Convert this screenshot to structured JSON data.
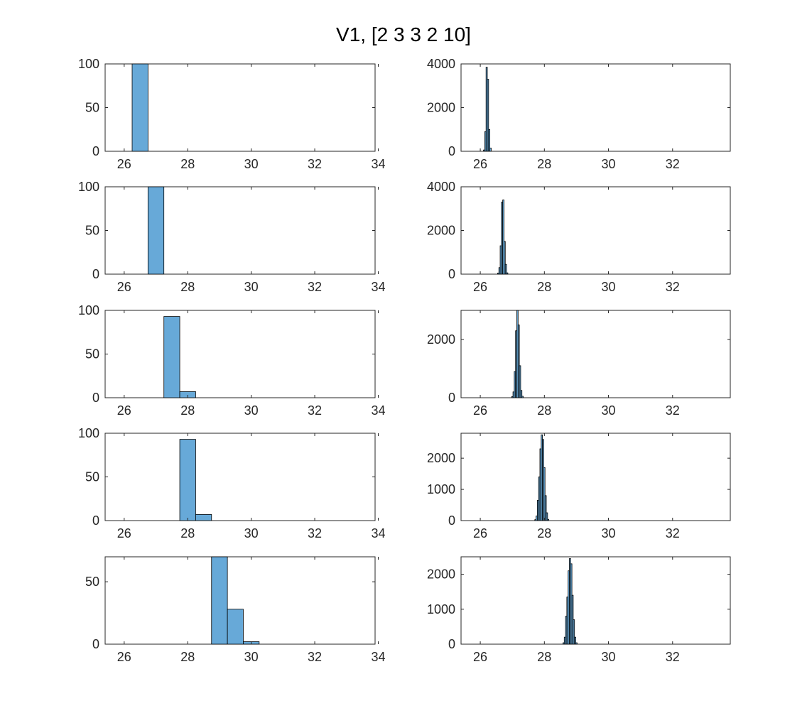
{
  "chart_data": {
    "type": "bar",
    "title": "V1, [2 3 3 2 10]",
    "bar_color": "#67A9D8",
    "edge_color": "#000000",
    "grid": false,
    "panels": [
      {
        "name": "row1-left",
        "xlim": [
          25.4,
          33.9
        ],
        "ylim": [
          0,
          100
        ],
        "xticks": [
          "26",
          "28",
          "30",
          "32",
          "34"
        ],
        "yticks": [
          "0",
          "50",
          "100"
        ],
        "bins": [
          [
            26.25,
            26.75,
            100
          ]
        ]
      },
      {
        "name": "row1-right",
        "xlim": [
          25.4,
          33.8
        ],
        "ylim": [
          0,
          4000
        ],
        "xticks": [
          "26",
          "28",
          "30",
          "32"
        ],
        "yticks": [
          "0",
          "2000",
          "4000"
        ],
        "bins": [
          [
            26.1,
            26.14,
            60
          ],
          [
            26.14,
            26.18,
            900
          ],
          [
            26.18,
            26.22,
            3850
          ],
          [
            26.22,
            26.26,
            3300
          ],
          [
            26.26,
            26.3,
            1000
          ],
          [
            26.3,
            26.34,
            150
          ]
        ]
      },
      {
        "name": "row2-left",
        "xlim": [
          25.4,
          33.9
        ],
        "ylim": [
          0,
          100
        ],
        "xticks": [
          "26",
          "28",
          "30",
          "32",
          "34"
        ],
        "yticks": [
          "0",
          "50",
          "100"
        ],
        "bins": [
          [
            26.75,
            27.25,
            100
          ]
        ]
      },
      {
        "name": "row2-right",
        "xlim": [
          25.4,
          33.8
        ],
        "ylim": [
          0,
          4000
        ],
        "xticks": [
          "26",
          "28",
          "30",
          "32"
        ],
        "yticks": [
          "0",
          "2000",
          "4000"
        ],
        "bins": [
          [
            26.54,
            26.58,
            50
          ],
          [
            26.58,
            26.62,
            300
          ],
          [
            26.62,
            26.66,
            1300
          ],
          [
            26.66,
            26.7,
            3300
          ],
          [
            26.7,
            26.74,
            3400
          ],
          [
            26.74,
            26.78,
            1500
          ],
          [
            26.78,
            26.82,
            450
          ],
          [
            26.82,
            26.86,
            60
          ]
        ]
      },
      {
        "name": "row3-left",
        "xlim": [
          25.4,
          33.9
        ],
        "ylim": [
          0,
          100
        ],
        "xticks": [
          "26",
          "28",
          "30",
          "32",
          "34"
        ],
        "yticks": [
          "0",
          "50",
          "100"
        ],
        "bins": [
          [
            27.25,
            27.75,
            93
          ],
          [
            27.75,
            28.25,
            7
          ]
        ]
      },
      {
        "name": "row3-right",
        "xlim": [
          25.4,
          33.8
        ],
        "ylim": [
          0,
          3000
        ],
        "xticks": [
          "26",
          "28",
          "30",
          "32"
        ],
        "yticks": [
          "0",
          "2000"
        ],
        "bins": [
          [
            26.98,
            27.02,
            40
          ],
          [
            27.02,
            27.06,
            200
          ],
          [
            27.06,
            27.1,
            900
          ],
          [
            27.1,
            27.14,
            2300
          ],
          [
            27.14,
            27.18,
            3000
          ],
          [
            27.18,
            27.22,
            2500
          ],
          [
            27.22,
            27.26,
            1100
          ],
          [
            27.26,
            27.3,
            250
          ],
          [
            27.3,
            27.34,
            50
          ]
        ]
      },
      {
        "name": "row4-left",
        "xlim": [
          25.4,
          33.9
        ],
        "ylim": [
          0,
          100
        ],
        "xticks": [
          "26",
          "28",
          "30",
          "32",
          "34"
        ],
        "yticks": [
          "0",
          "50",
          "100"
        ],
        "bins": [
          [
            27.75,
            28.25,
            93
          ],
          [
            28.25,
            28.75,
            7
          ]
        ]
      },
      {
        "name": "row4-right",
        "xlim": [
          25.4,
          33.8
        ],
        "ylim": [
          0,
          2800
        ],
        "xticks": [
          "26",
          "28",
          "30",
          "32"
        ],
        "yticks": [
          "0",
          "1000",
          "2000"
        ],
        "bins": [
          [
            27.7,
            27.74,
            30
          ],
          [
            27.74,
            27.78,
            150
          ],
          [
            27.78,
            27.82,
            650
          ],
          [
            27.82,
            27.86,
            1400
          ],
          [
            27.86,
            27.9,
            2300
          ],
          [
            27.9,
            27.94,
            2750
          ],
          [
            27.94,
            27.98,
            2600
          ],
          [
            27.98,
            28.02,
            1700
          ],
          [
            28.02,
            28.06,
            800
          ],
          [
            28.06,
            28.1,
            250
          ],
          [
            28.1,
            28.14,
            40
          ]
        ]
      },
      {
        "name": "row5-left",
        "xlim": [
          25.4,
          33.9
        ],
        "ylim": [
          0,
          70
        ],
        "xticks": [
          "26",
          "28",
          "30",
          "32",
          "34"
        ],
        "yticks": [
          "0",
          "50"
        ],
        "bins": [
          [
            28.75,
            29.25,
            70
          ],
          [
            29.25,
            29.75,
            28
          ],
          [
            29.75,
            30.25,
            2
          ]
        ]
      },
      {
        "name": "row5-right",
        "xlim": [
          25.4,
          33.8
        ],
        "ylim": [
          0,
          2500
        ],
        "xticks": [
          "26",
          "28",
          "30",
          "32"
        ],
        "yticks": [
          "0",
          "1000",
          "2000"
        ],
        "bins": [
          [
            28.58,
            28.62,
            40
          ],
          [
            28.62,
            28.66,
            200
          ],
          [
            28.66,
            28.7,
            800
          ],
          [
            28.7,
            28.74,
            1350
          ],
          [
            28.74,
            28.78,
            2100
          ],
          [
            28.78,
            28.82,
            2450
          ],
          [
            28.82,
            28.86,
            2300
          ],
          [
            28.86,
            28.9,
            1400
          ],
          [
            28.9,
            28.94,
            700
          ],
          [
            28.94,
            28.98,
            200
          ],
          [
            28.98,
            29.02,
            40
          ]
        ]
      }
    ]
  }
}
